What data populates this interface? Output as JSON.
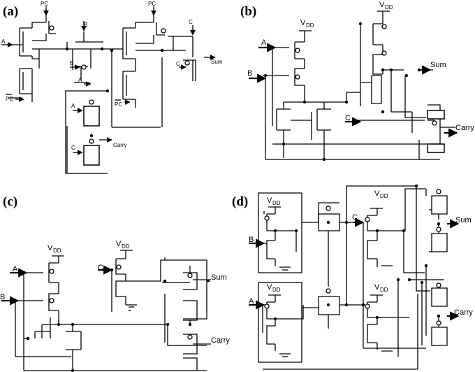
{
  "figure": {
    "panels": [
      {
        "id": "a",
        "label": "(a)",
        "signals": {
          "pc1": "PC",
          "pc2": "PC",
          "a": "A",
          "b1": "B",
          "b2": "B",
          "a2": "A",
          "c1": "C",
          "c2": "C",
          "pc_bar1": "PC",
          "pc_bar2": "PC",
          "sum": "Sum",
          "carry": "Carry",
          "c3": "C",
          "a3": "A"
        }
      },
      {
        "id": "b",
        "label": "(b)",
        "signals": {
          "vdd1": "V",
          "vdd1_sub": "DD",
          "vdd2": "V",
          "vdd2_sub": "DD",
          "a": "A",
          "b": "B",
          "c": "C",
          "sum": "Sum",
          "carry": "Carry"
        }
      },
      {
        "id": "c",
        "label": "(c)",
        "signals": {
          "vdd1": "V",
          "vdd1_sub": "DD",
          "vdd2": "V",
          "vdd2_sub": "DD",
          "a": "A",
          "b": "B",
          "c": "C",
          "sum": "Sum",
          "carry": "Carry"
        }
      },
      {
        "id": "d",
        "label": "(d)",
        "signals": {
          "vdd1": "V",
          "vdd1_sub": "DD",
          "vdd2": "V",
          "vdd2_sub": "DD",
          "vdd3": "V",
          "vdd3_sub": "DD",
          "vdd4": "V",
          "vdd4_sub": "DD",
          "b": "B",
          "a": "A",
          "c": "C",
          "sum": "Sum",
          "carry": "Carry"
        }
      }
    ]
  }
}
